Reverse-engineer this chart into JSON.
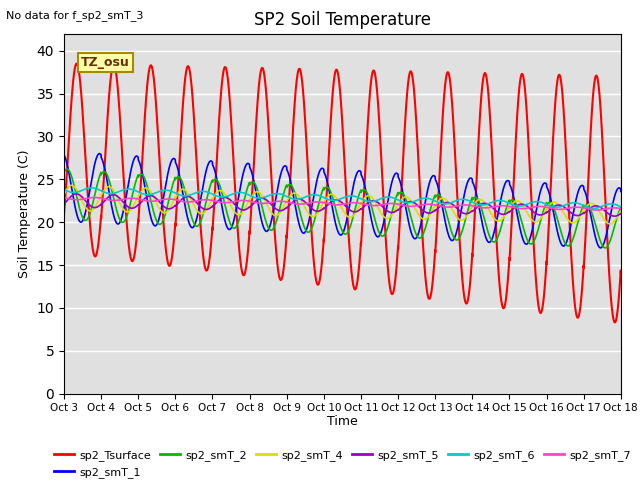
{
  "title": "SP2 Soil Temperature",
  "ylabel": "Soil Temperature (C)",
  "xlabel": "Time",
  "note": "No data for f_sp2_smT_3",
  "annotation": "TZ_osu",
  "ylim": [
    0,
    42
  ],
  "yticks": [
    0,
    5,
    10,
    15,
    20,
    25,
    30,
    35,
    40
  ],
  "bg_color": "#e0e0e0",
  "series_colors": {
    "sp2_Tsurface": "#ff0000",
    "sp2_smT_1": "#0000ff",
    "sp2_smT_2": "#00bb00",
    "sp2_smT_4": "#dddd00",
    "sp2_smT_5": "#9900cc",
    "sp2_smT_6": "#00cccc",
    "sp2_smT_7": "#ff44cc"
  },
  "legend_order": [
    "sp2_Tsurface",
    "sp2_smT_1",
    "sp2_smT_2",
    "sp2_smT_4",
    "sp2_smT_5",
    "sp2_smT_6",
    "sp2_smT_7"
  ],
  "xtick_labels": [
    "Oct 3",
    "Oct 4",
    "Oct 5",
    "Oct 6",
    "Oct 7",
    "Oct 8",
    "Oct 9",
    "Oct 10",
    "Oct 11",
    "Oct 12",
    "Oct 13",
    "Oct 14",
    "Oct 15",
    "Oct 16",
    "Oct 17",
    "Oct 18"
  ]
}
